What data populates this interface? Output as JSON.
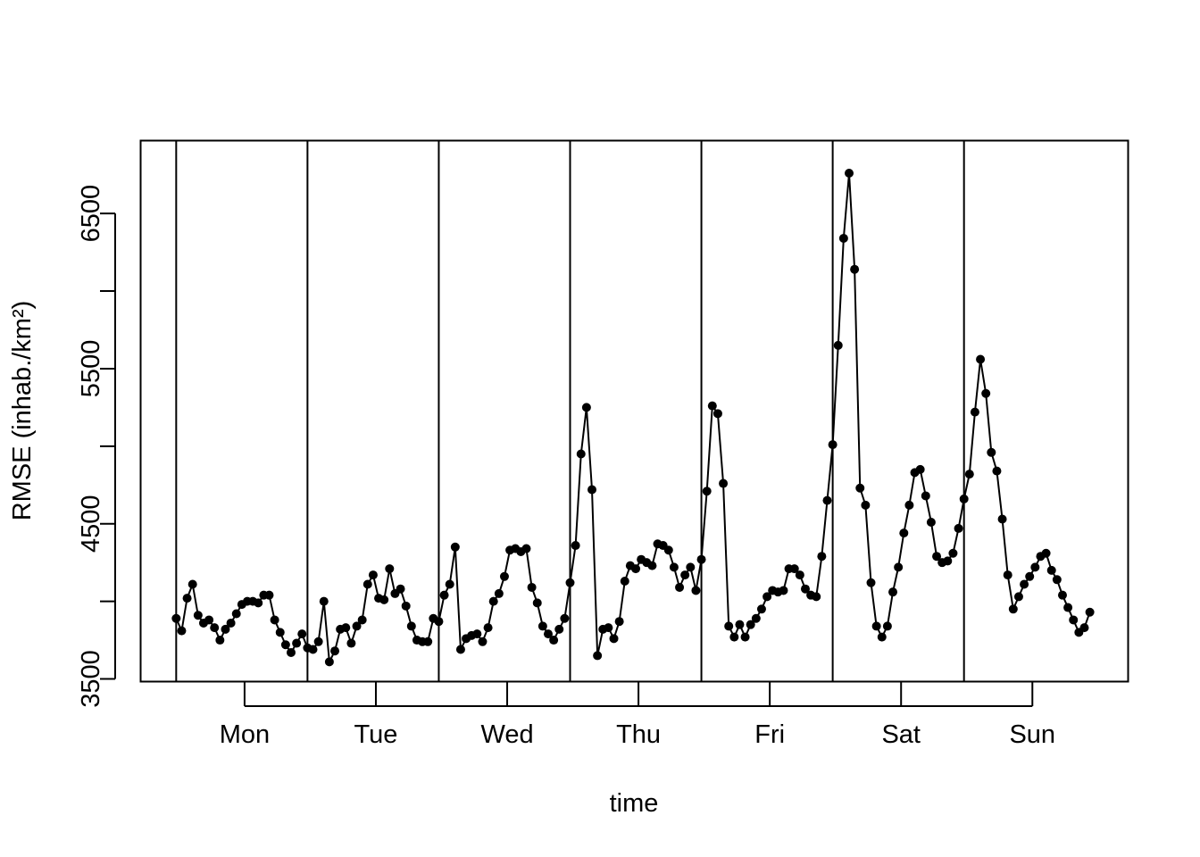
{
  "chart_data": {
    "type": "line",
    "title": "",
    "xlabel": "time",
    "ylabel": "RMSE (inhab./km²)",
    "ylim": [
      3500,
      6900
    ],
    "yticks": [
      3500,
      4000,
      4500,
      5000,
      5500,
      6000,
      6500
    ],
    "ytick_labels": [
      "3500",
      "",
      "4500",
      "",
      "5500",
      "",
      "6500"
    ],
    "xticks": [
      {
        "label": "Mon",
        "x": 12.5
      },
      {
        "label": "Tue",
        "x": 36.5
      },
      {
        "label": "Wed",
        "x": 60.5
      },
      {
        "label": "Thu",
        "x": 84.5
      },
      {
        "label": "Fri",
        "x": 108.5
      },
      {
        "label": "Sat",
        "x": 132.5
      },
      {
        "label": "Sun",
        "x": 156.5
      }
    ],
    "xlim": [
      -6.5,
      174
    ],
    "day_separators": [
      0,
      24,
      48,
      72,
      96,
      120,
      144
    ],
    "grid": false,
    "series": [
      {
        "style": "line-with-points",
        "color": "#000000",
        "x_start": 0,
        "values": [
          3890,
          3810,
          4020,
          4110,
          3910,
          3860,
          3880,
          3830,
          3750,
          3820,
          3860,
          3920,
          3980,
          4000,
          4000,
          3990,
          4040,
          4040,
          3880,
          3800,
          3720,
          3670,
          3730,
          3790,
          3700,
          3690,
          3740,
          4000,
          3610,
          3680,
          3820,
          3830,
          3730,
          3840,
          3880,
          4110,
          4170,
          4020,
          4010,
          4210,
          4050,
          4080,
          3970,
          3840,
          3750,
          3740,
          3740,
          3890,
          3870,
          4040,
          4110,
          4350,
          3690,
          3760,
          3780,
          3790,
          3740,
          3830,
          4000,
          4050,
          4160,
          4330,
          4340,
          4320,
          4340,
          4090,
          3990,
          3840,
          3790,
          3750,
          3820,
          3890,
          4120,
          4360,
          4950,
          5250,
          4720,
          3650,
          3820,
          3830,
          3760,
          3870,
          4130,
          4230,
          4210,
          4270,
          4250,
          4230,
          4370,
          4360,
          4330,
          4220,
          4090,
          4170,
          4220,
          4070,
          4270,
          4710,
          5260,
          5210,
          4760,
          3840,
          3770,
          3850,
          3770,
          3850,
          3890,
          3950,
          4030,
          4070,
          4060,
          4070,
          4210,
          4210,
          4170,
          4080,
          4040,
          4030,
          4290,
          4650,
          5010,
          5650,
          6340,
          6760,
          6140,
          4730,
          4620,
          4120,
          3840,
          3770,
          3840,
          4060,
          4220,
          4440,
          4620,
          4830,
          4850,
          4680,
          4510,
          4290,
          4250,
          4260,
          4310,
          4470,
          4660,
          4820,
          5220,
          5560,
          5340,
          4960,
          4840,
          4530,
          4170,
          3950,
          4030,
          4110,
          4160,
          4220,
          4290,
          4310,
          4200,
          4140,
          4040,
          3960,
          3880,
          3800,
          3830,
          3930
        ]
      }
    ]
  }
}
